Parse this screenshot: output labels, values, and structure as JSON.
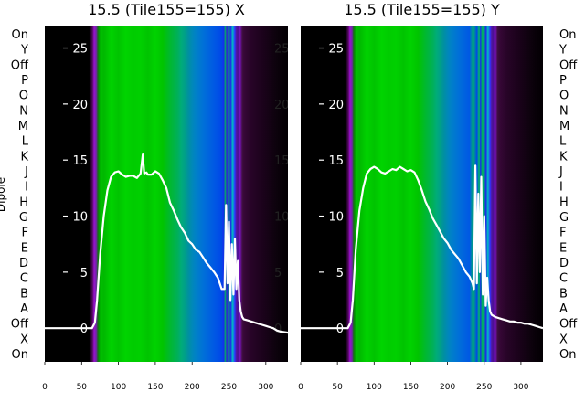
{
  "chart_data": [
    {
      "type": "heatmap",
      "title": "15.5 (Tile155=155) X",
      "xlabel": "",
      "ylabel": "Dipole",
      "xlim": [
        0,
        330
      ],
      "x_ticks": [
        0,
        50,
        100,
        150,
        200,
        250,
        300
      ],
      "row_labels": [
        "On",
        "Y",
        "Off",
        "P",
        "O",
        "N",
        "M",
        "L",
        "K",
        "J",
        "I",
        "H",
        "G",
        "F",
        "E",
        "D",
        "C",
        "B",
        "A",
        "Off",
        "X",
        "On"
      ],
      "overlay_ylim": [
        -3,
        27
      ],
      "overlay_ticks": [
        0,
        5,
        10,
        15,
        20,
        25
      ],
      "overlay_line": {
        "x": [
          0,
          64,
          68,
          71,
          75,
          80,
          85,
          90,
          95,
          100,
          105,
          110,
          115,
          120,
          125,
          130,
          133,
          135,
          138,
          140,
          145,
          150,
          155,
          160,
          165,
          170,
          175,
          180,
          185,
          190,
          195,
          200,
          205,
          210,
          215,
          220,
          225,
          230,
          235,
          240,
          244,
          246,
          248,
          250,
          252,
          254,
          256,
          258,
          260,
          262,
          264,
          266,
          268,
          270,
          275,
          280,
          285,
          290,
          295,
          300,
          305,
          310,
          315,
          320,
          330
        ],
        "y": [
          0,
          0,
          0.5,
          2.5,
          6.5,
          10,
          12.3,
          13.5,
          13.9,
          14.0,
          13.7,
          13.5,
          13.6,
          13.6,
          13.4,
          13.8,
          15.5,
          13.8,
          13.9,
          13.7,
          13.7,
          14.0,
          13.8,
          13.2,
          12.5,
          11.2,
          10.5,
          9.7,
          9.0,
          8.5,
          7.8,
          7.5,
          7.0,
          6.8,
          6.3,
          5.8,
          5.4,
          5.0,
          4.5,
          3.5,
          3.5,
          11.0,
          4.0,
          9.5,
          2.5,
          7.5,
          3.0,
          8.0,
          3.5,
          6.0,
          2.5,
          1.5,
          1.0,
          0.8,
          0.7,
          0.6,
          0.5,
          0.4,
          0.3,
          0.2,
          0.1,
          0.0,
          -0.2,
          -0.3,
          -0.4
        ]
      },
      "color_profile": {
        "x": [
          0,
          60,
          62,
          65,
          67,
          70,
          72,
          74,
          76,
          80,
          90,
          100,
          110,
          120,
          130,
          140,
          150,
          160,
          170,
          180,
          185,
          190,
          195,
          200,
          205,
          210,
          215,
          220,
          225,
          230,
          235,
          240,
          243,
          245,
          247,
          250,
          252,
          255,
          258,
          260,
          262,
          265,
          268,
          270,
          275,
          280,
          290,
          300,
          310,
          320,
          330
        ],
        "colors": [
          "#000000",
          "#000000",
          "#150015",
          "#5a0a6a",
          "#9a10d0",
          "#6b2aa0",
          "#1a6a1a",
          "#00a000",
          "#00c000",
          "#00b800",
          "#00d200",
          "#00c400",
          "#00d400",
          "#00cc00",
          "#00d000",
          "#00c400",
          "#00d200",
          "#00c400",
          "#00b830",
          "#00b058",
          "#00ac78",
          "#00a088",
          "#0090a0",
          "#0088b8",
          "#0080c8",
          "#0078d0",
          "#0070d8",
          "#0068dc",
          "#0060e0",
          "#0058e4",
          "#0050e6",
          "#0048e8",
          "#1530e8",
          "#00b060",
          "#3018e0",
          "#00a878",
          "#2020e8",
          "#00c0c0",
          "#3030ff",
          "#5018a0",
          "#4a1090",
          "#7a10c0",
          "#401040",
          "#380838",
          "#300630",
          "#280428",
          "#200320",
          "#180218",
          "#100210",
          "#080108",
          "#030003"
        ]
      }
    },
    {
      "type": "heatmap",
      "title": "15.5 (Tile155=155) Y",
      "xlabel": "",
      "ylabel": "",
      "xlim": [
        0,
        330
      ],
      "x_ticks": [
        0,
        50,
        100,
        150,
        200,
        250,
        300
      ],
      "row_labels": [
        "On",
        "Y",
        "Off",
        "P",
        "O",
        "N",
        "M",
        "L",
        "K",
        "J",
        "I",
        "H",
        "G",
        "F",
        "E",
        "D",
        "C",
        "B",
        "A",
        "Off",
        "X",
        "On"
      ],
      "overlay_ylim": [
        -3,
        27
      ],
      "overlay_ticks": [
        0,
        5,
        10,
        15,
        20,
        25
      ],
      "overlay_line": {
        "x": [
          0,
          64,
          68,
          71,
          75,
          80,
          85,
          90,
          95,
          100,
          105,
          110,
          115,
          120,
          125,
          130,
          135,
          140,
          145,
          150,
          155,
          160,
          165,
          170,
          175,
          180,
          185,
          190,
          195,
          200,
          205,
          210,
          215,
          220,
          225,
          230,
          234,
          236,
          238,
          240,
          242,
          244,
          246,
          248,
          250,
          252,
          254,
          256,
          258,
          260,
          265,
          270,
          275,
          280,
          285,
          290,
          295,
          300,
          305,
          310,
          315,
          320,
          325,
          330
        ],
        "y": [
          0,
          0,
          0.5,
          2.5,
          7.0,
          10.5,
          12.5,
          13.8,
          14.2,
          14.4,
          14.2,
          13.9,
          13.8,
          14.0,
          14.2,
          14.1,
          14.4,
          14.2,
          14.0,
          14.1,
          13.9,
          13.2,
          12.3,
          11.3,
          10.6,
          9.8,
          9.2,
          8.6,
          8.0,
          7.6,
          7.0,
          6.6,
          6.2,
          5.6,
          5.0,
          4.6,
          4.0,
          3.5,
          14.5,
          4.0,
          12.0,
          5.0,
          13.5,
          3.0,
          10.0,
          2.0,
          4.5,
          2.5,
          1.5,
          1.2,
          1.0,
          0.9,
          0.8,
          0.7,
          0.6,
          0.6,
          0.5,
          0.5,
          0.4,
          0.4,
          0.3,
          0.2,
          0.1,
          0.0
        ]
      },
      "color_profile": {
        "x": [
          0,
          60,
          62,
          65,
          67,
          70,
          72,
          74,
          76,
          80,
          90,
          100,
          110,
          120,
          130,
          140,
          150,
          160,
          170,
          180,
          185,
          190,
          195,
          200,
          205,
          210,
          215,
          220,
          225,
          230,
          235,
          240,
          243,
          245,
          247,
          250,
          252,
          255,
          258,
          260,
          262,
          265,
          268,
          270,
          275,
          280,
          290,
          300,
          310,
          320,
          330
        ],
        "colors": [
          "#000000",
          "#000000",
          "#150015",
          "#5a0a6a",
          "#9a10d0",
          "#6b2aa0",
          "#1a6a1a",
          "#00a000",
          "#00c000",
          "#00b800",
          "#00d200",
          "#00c400",
          "#00d400",
          "#00cc00",
          "#00d000",
          "#00c400",
          "#00d200",
          "#00c400",
          "#00b830",
          "#00b058",
          "#00ac78",
          "#00a088",
          "#0090a0",
          "#0088b8",
          "#0080c8",
          "#0078d0",
          "#0070d8",
          "#0068dc",
          "#0060e0",
          "#0058e4",
          "#00b070",
          "#0048e8",
          "#00c060",
          "#1530e8",
          "#00b060",
          "#00a878",
          "#2020e8",
          "#00c0c0",
          "#3030ff",
          "#5018a0",
          "#4a1090",
          "#7a10c0",
          "#401040",
          "#380838",
          "#300630",
          "#280428",
          "#200320",
          "#180218",
          "#100210",
          "#080108",
          "#030003"
        ]
      }
    }
  ]
}
